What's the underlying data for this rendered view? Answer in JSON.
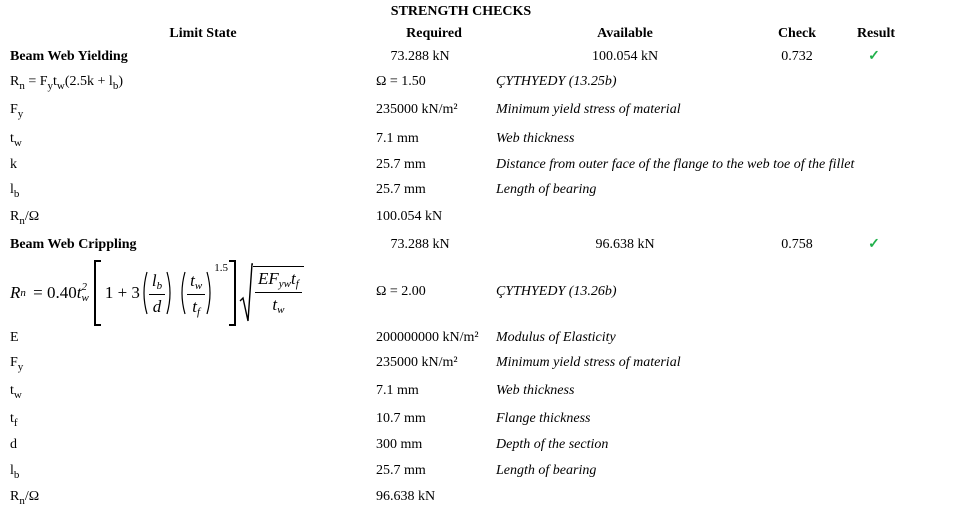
{
  "title": "STRENGTH CHECKS",
  "headers": {
    "limit_state": "Limit State",
    "required": "Required",
    "available": "Available",
    "check": "Check",
    "result": "Result"
  },
  "yielding": {
    "name": "Beam Web Yielding",
    "required": "73.288 kN",
    "available": "100.054 kN",
    "check": "0.732",
    "result": "✓",
    "formula": {
      "R": "R",
      "n": "n",
      "eq": " = F",
      "y": "y",
      "t": "t",
      "w": "w",
      "rest": "(2.5k + l",
      "b": "b",
      "close": ")"
    },
    "omega": "Ω = 1.50",
    "reference": "ÇYTHYEDY (13.25b)",
    "params": [
      {
        "sym": "F",
        "sub": "y",
        "value": "235000 kN/m²",
        "desc": "Minimum yield stress of material"
      },
      {
        "sym": "t",
        "sub": "w",
        "value": "7.1 mm",
        "desc": "Web thickness"
      },
      {
        "sym": "k",
        "sub": "",
        "value": "25.7 mm",
        "desc": "Distance from outer face of the flange to the web toe of the fillet"
      },
      {
        "sym": "l",
        "sub": "b",
        "value": "25.7 mm",
        "desc": "Length of bearing"
      }
    ],
    "result_row": {
      "sym": "R",
      "sub": "n",
      "tail": "/Ω",
      "value": "100.054 kN"
    }
  },
  "crippling": {
    "name": "Beam Web Crippling",
    "required": "73.288 kN",
    "available": "96.638 kN",
    "check": "0.758",
    "result": "✓",
    "formula": {
      "lhs": "R",
      "lhs_sub": "n",
      "eq": " = 0.40",
      "t": "t",
      "t_sub": "w",
      "t_sup": "2",
      "one": "1 + 3",
      "l": "l",
      "l_sub": "b",
      "d": "d",
      "tw": "t",
      "tw_sub": "w",
      "tf": "t",
      "tf_sub": "f",
      "exp": "1.5",
      "num": "EF",
      "num_sub": "yw",
      "num_t": "t",
      "num_t_sub": "f",
      "den": "t",
      "den_sub": "w"
    },
    "omega": "Ω = 2.00",
    "reference": "ÇYTHYEDY (13.26b)",
    "params": [
      {
        "sym": "E",
        "sub": "",
        "value": "200000000 kN/m²",
        "desc": "Modulus of Elasticity"
      },
      {
        "sym": "F",
        "sub": "y",
        "value": "235000 kN/m²",
        "desc": "Minimum yield stress of material"
      },
      {
        "sym": "t",
        "sub": "w",
        "value": "7.1 mm",
        "desc": "Web thickness"
      },
      {
        "sym": "t",
        "sub": "f",
        "value": "10.7 mm",
        "desc": "Flange thickness"
      },
      {
        "sym": "d",
        "sub": "",
        "value": "300 mm",
        "desc": "Depth of the section"
      },
      {
        "sym": "l",
        "sub": "b",
        "value": "25.7 mm",
        "desc": "Length of bearing"
      }
    ],
    "result_row": {
      "sym": "R",
      "sub": "n",
      "tail": "/Ω",
      "value": "96.638 kN"
    }
  },
  "colors": {
    "check_mark": "#22b14c"
  }
}
